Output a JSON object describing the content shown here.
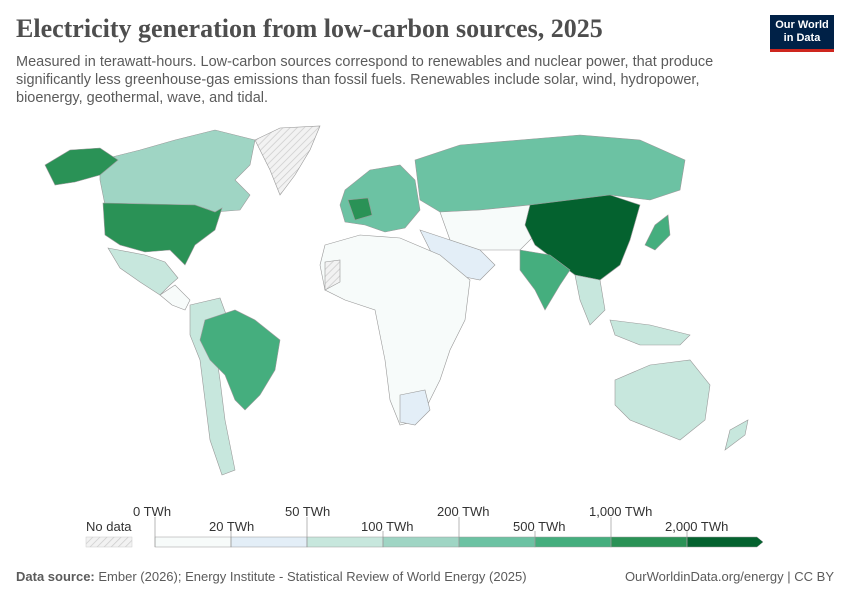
{
  "header": {
    "title": "Electricity generation from low-carbon sources, 2025",
    "subtitle": "Measured in terawatt-hours. Low-carbon sources correspond to renewables and nuclear power, that produce significantly less greenhouse-gas emissions than fossil fuels. Renewables include solar, wind, hydropower, bioenergy, geothermal, wave, and tidal."
  },
  "logo": {
    "line1": "Our World",
    "line2": "in Data"
  },
  "legend": {
    "no_data": "No data",
    "ticks": [
      {
        "value": 0,
        "label": "0 TWh"
      },
      {
        "value": 20,
        "label": "20 TWh"
      },
      {
        "value": 50,
        "label": "50 TWh"
      },
      {
        "value": 100,
        "label": "100 TWh"
      },
      {
        "value": 200,
        "label": "200 TWh"
      },
      {
        "value": 500,
        "label": "500 TWh"
      },
      {
        "value": 1000,
        "label": "1,000 TWh"
      },
      {
        "value": 2000,
        "label": "2,000 TWh"
      }
    ],
    "colors": [
      "#f7fbfa",
      "#e3eef7",
      "#c7e7dd",
      "#9fd5c4",
      "#6cc2a3",
      "#45ae7e",
      "#2a9256",
      "#04622f"
    ]
  },
  "footer": {
    "source_label": "Data source:",
    "source": "Ember (2026); Energy Institute - Statistical Review of World Energy (2025)",
    "url": "OurWorldinData.org/energy | CC BY"
  }
}
